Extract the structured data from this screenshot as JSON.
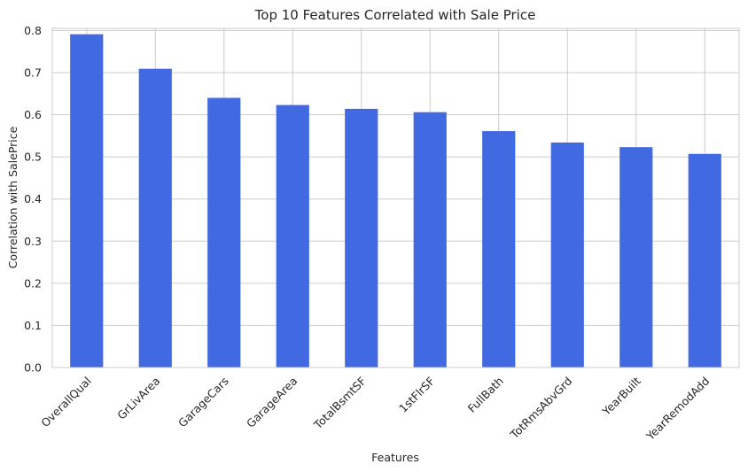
{
  "chart_data": {
    "type": "bar",
    "title": "Top 10 Features Correlated with Sale Price",
    "xlabel": "Features",
    "ylabel": "Correlation with SalePrice",
    "categories": [
      "OverallQual",
      "GrLivArea",
      "GarageCars",
      "GarageArea",
      "TotalBsmtSF",
      "1stFlrSF",
      "FullBath",
      "TotRmsAbvGrd",
      "YearBuilt",
      "YearRemodAdd"
    ],
    "values": [
      0.791,
      0.709,
      0.64,
      0.623,
      0.614,
      0.606,
      0.561,
      0.534,
      0.523,
      0.507
    ],
    "ylim": [
      0,
      0.805
    ],
    "yticks": [
      "0.0",
      "0.1",
      "0.2",
      "0.3",
      "0.4",
      "0.5",
      "0.6",
      "0.7",
      "0.8"
    ],
    "grid": true,
    "bar_color": "#4169E1",
    "grid_color": "#cccccc"
  }
}
